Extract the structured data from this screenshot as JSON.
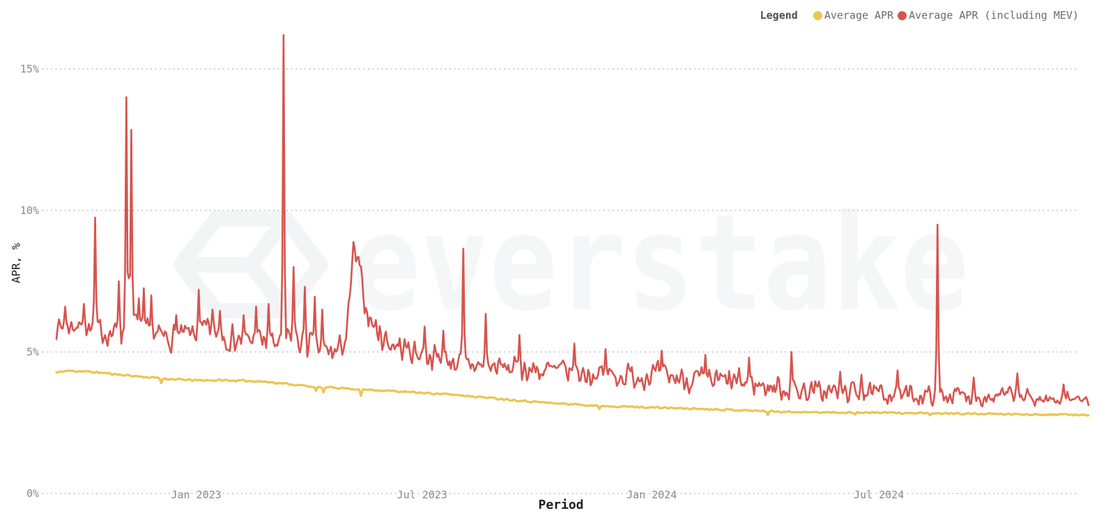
{
  "page": {
    "background": "#ffffff"
  },
  "legend": {
    "title": "Legend",
    "items": [
      {
        "label": "Average APR",
        "color": "#ecc450"
      },
      {
        "label": "Average APR (including MEV)",
        "color": "#d6544e"
      }
    ]
  },
  "watermark": {
    "text": "everstake",
    "icon": "everstake-cube-icon",
    "color": "#f5f6f7"
  },
  "chart_data": {
    "type": "line",
    "title": "",
    "xlabel": "Period",
    "ylabel": "APR, %",
    "grid": "dotted-horizontal",
    "legend_position": "top-right",
    "background": "#ffffff",
    "x_unit": "days since 2022-09-11",
    "x_range_days": [
      0,
      827
    ],
    "x_end_date": "2024-12-16",
    "ylim": [
      0,
      16.5
    ],
    "y_ticks": [
      {
        "label": "0%",
        "value": 0
      },
      {
        "label": "5%",
        "value": 5
      },
      {
        "label": "10%",
        "value": 10
      },
      {
        "label": "15%",
        "value": 15
      }
    ],
    "x_ticks": [
      {
        "label": "Jan 2023",
        "day": 112
      },
      {
        "label": "Jul 2023",
        "day": 293
      },
      {
        "label": "Jan 2024",
        "day": 477
      },
      {
        "label": "Jul 2024",
        "day": 659
      }
    ],
    "series": [
      {
        "name": "Average APR",
        "color": "#ecc450",
        "stroke_width": 3.2,
        "seed": 11,
        "noise_amplitude_points": [
          [
            0,
            0.03
          ],
          [
            827,
            0.025
          ]
        ],
        "baseline": [
          [
            0,
            4.27
          ],
          [
            8,
            4.33
          ],
          [
            20,
            4.32
          ],
          [
            35,
            4.27
          ],
          [
            55,
            4.18
          ],
          [
            75,
            4.1
          ],
          [
            95,
            4.03
          ],
          [
            112,
            4.0
          ],
          [
            135,
            4.0
          ],
          [
            160,
            3.97
          ],
          [
            180,
            3.9
          ],
          [
            195,
            3.82
          ],
          [
            210,
            3.76
          ],
          [
            228,
            3.73
          ],
          [
            242,
            3.68
          ],
          [
            258,
            3.65
          ],
          [
            275,
            3.6
          ],
          [
            295,
            3.55
          ],
          [
            315,
            3.5
          ],
          [
            335,
            3.43
          ],
          [
            355,
            3.35
          ],
          [
            375,
            3.27
          ],
          [
            395,
            3.2
          ],
          [
            415,
            3.15
          ],
          [
            435,
            3.1
          ],
          [
            455,
            3.07
          ],
          [
            477,
            3.04
          ],
          [
            500,
            3.01
          ],
          [
            525,
            2.98
          ],
          [
            550,
            2.94
          ],
          [
            575,
            2.9
          ],
          [
            600,
            2.87
          ],
          [
            630,
            2.86
          ],
          [
            660,
            2.86
          ],
          [
            695,
            2.83
          ],
          [
            730,
            2.82
          ],
          [
            765,
            2.8
          ],
          [
            800,
            2.79
          ],
          [
            827,
            2.78
          ]
        ],
        "spikes": [
          [
            84,
            3.9
          ],
          [
            208,
            3.62
          ],
          [
            214,
            3.57
          ],
          [
            244,
            3.45
          ],
          [
            435,
            2.98
          ],
          [
            570,
            2.77
          ],
          [
            640,
            2.79
          ],
          [
            700,
            2.76
          ]
        ]
      },
      {
        "name": "Average APR (including MEV)",
        "color": "#d6544e",
        "stroke_width": 2.6,
        "seed": 7,
        "noise_amplitude_points": [
          [
            0,
            0.32
          ],
          [
            40,
            0.4
          ],
          [
            80,
            0.42
          ],
          [
            130,
            0.42
          ],
          [
            180,
            0.45
          ],
          [
            210,
            0.5
          ],
          [
            235,
            0.35
          ],
          [
            260,
            0.45
          ],
          [
            300,
            0.38
          ],
          [
            350,
            0.35
          ],
          [
            400,
            0.4
          ],
          [
            460,
            0.4
          ],
          [
            520,
            0.42
          ],
          [
            570,
            0.4
          ],
          [
            620,
            0.35
          ],
          [
            670,
            0.3
          ],
          [
            720,
            0.3
          ],
          [
            770,
            0.28
          ],
          [
            800,
            0.22
          ],
          [
            827,
            0.18
          ]
        ],
        "baseline": [
          [
            0,
            5.85
          ],
          [
            15,
            5.95
          ],
          [
            30,
            5.8
          ],
          [
            45,
            5.65
          ],
          [
            55,
            5.7
          ],
          [
            62,
            6.1
          ],
          [
            68,
            5.8
          ],
          [
            78,
            5.55
          ],
          [
            90,
            5.5
          ],
          [
            100,
            5.55
          ],
          [
            112,
            5.65
          ],
          [
            122,
            5.8
          ],
          [
            132,
            5.6
          ],
          [
            145,
            5.45
          ],
          [
            160,
            5.4
          ],
          [
            172,
            5.35
          ],
          [
            180,
            5.3
          ],
          [
            188,
            5.5
          ],
          [
            196,
            5.35
          ],
          [
            205,
            5.2
          ],
          [
            215,
            5.0
          ],
          [
            225,
            5.0
          ],
          [
            232,
            5.5
          ],
          [
            236,
            7.2
          ],
          [
            238,
            9.0
          ],
          [
            240,
            7.9
          ],
          [
            242,
            8.3
          ],
          [
            245,
            7.2
          ],
          [
            248,
            6.6
          ],
          [
            252,
            6.1
          ],
          [
            258,
            5.7
          ],
          [
            266,
            5.35
          ],
          [
            280,
            5.1
          ],
          [
            295,
            4.9
          ],
          [
            310,
            4.75
          ],
          [
            325,
            4.6
          ],
          [
            340,
            4.5
          ],
          [
            360,
            4.45
          ],
          [
            385,
            4.35
          ],
          [
            410,
            4.3
          ],
          [
            435,
            4.2
          ],
          [
            460,
            4.15
          ],
          [
            478,
            4.2
          ],
          [
            495,
            4.1
          ],
          [
            515,
            4.0
          ],
          [
            535,
            3.95
          ],
          [
            555,
            3.9
          ],
          [
            575,
            3.75
          ],
          [
            595,
            3.65
          ],
          [
            615,
            3.6
          ],
          [
            635,
            3.6
          ],
          [
            655,
            3.5
          ],
          [
            672,
            3.55
          ],
          [
            690,
            3.45
          ],
          [
            710,
            3.5
          ],
          [
            730,
            3.45
          ],
          [
            750,
            3.4
          ],
          [
            768,
            3.5
          ],
          [
            782,
            3.35
          ],
          [
            795,
            3.3
          ],
          [
            810,
            3.4
          ],
          [
            820,
            3.3
          ],
          [
            827,
            3.3
          ]
        ],
        "spikes": [
          [
            7,
            6.6
          ],
          [
            22,
            6.7
          ],
          [
            31,
            9.75
          ],
          [
            50,
            7.5
          ],
          [
            56,
            14.0
          ],
          [
            58,
            7.6
          ],
          [
            60,
            12.85
          ],
          [
            66,
            6.9
          ],
          [
            70,
            7.25
          ],
          [
            76,
            7.0
          ],
          [
            96,
            6.3
          ],
          [
            114,
            7.2
          ],
          [
            125,
            6.5
          ],
          [
            131,
            6.45
          ],
          [
            150,
            6.3
          ],
          [
            160,
            6.6
          ],
          [
            170,
            6.7
          ],
          [
            182,
            16.2
          ],
          [
            190,
            8.0
          ],
          [
            199,
            7.3
          ],
          [
            207,
            6.95
          ],
          [
            213,
            6.5
          ],
          [
            295,
            5.9
          ],
          [
            310,
            5.75
          ],
          [
            326,
            8.65
          ],
          [
            344,
            6.35
          ],
          [
            371,
            5.6
          ],
          [
            415,
            5.3
          ],
          [
            440,
            5.1
          ],
          [
            485,
            5.05
          ],
          [
            520,
            4.9
          ],
          [
            555,
            4.8
          ],
          [
            589,
            5.0
          ],
          [
            628,
            4.3
          ],
          [
            645,
            4.2
          ],
          [
            674,
            4.35
          ],
          [
            706,
            9.5
          ],
          [
            735,
            4.1
          ],
          [
            770,
            4.25
          ],
          [
            807,
            3.85
          ]
        ]
      }
    ]
  },
  "colors": {
    "grid": "#bfbfbf",
    "tick_text": "#8a8a8a",
    "axis_label_text": "#1f1f1f"
  }
}
